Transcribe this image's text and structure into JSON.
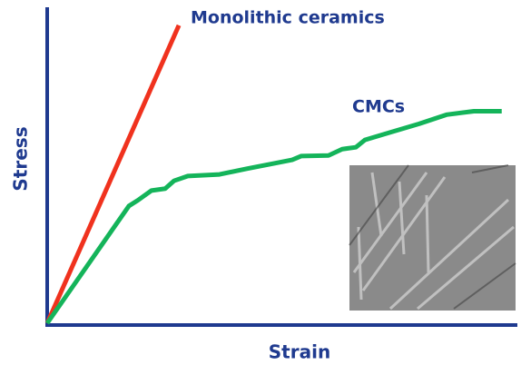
{
  "chart_data": {
    "type": "line",
    "x_label": "Strain",
    "y_label": "Stress",
    "xlim": [
      0,
      100
    ],
    "ylim": [
      0,
      100
    ],
    "series": [
      {
        "name": "Monolithic ceramics",
        "color": "#f0321e",
        "x": [
          0,
          27.9
        ],
        "values": [
          0,
          94.3
        ]
      },
      {
        "name": "CMCs",
        "color": "#14b45a",
        "x": [
          0,
          17.3,
          19.2,
          22.1,
          25,
          26.9,
          29.8,
          36.5,
          42.3,
          48.1,
          51.9,
          53.8,
          59.6,
          62.5,
          65.4,
          67.3,
          73.1,
          78.8,
          84.6,
          90.4,
          96.3
        ],
        "values": [
          0,
          37.1,
          38.9,
          42,
          42.6,
          45.1,
          46.6,
          47.1,
          48.9,
          50.6,
          51.7,
          52.9,
          53.1,
          55.1,
          55.7,
          58,
          60.6,
          63.1,
          66,
          67.1,
          67.1
        ]
      }
    ]
  }
}
